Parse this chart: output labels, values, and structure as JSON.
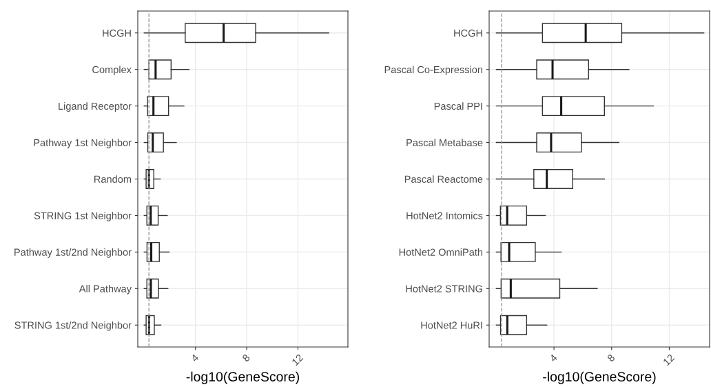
{
  "chart_data": [
    {
      "type": "box",
      "orientation": "horizontal",
      "xlabel": "-log10(GeneScore)",
      "grid": true,
      "categories": [
        "HCGH",
        "Complex",
        "Ligand Receptor",
        "Pathway 1st Neighbor",
        "Random",
        "STRING 1st Neighbor",
        "Pathway 1st/2nd Neighbor",
        "All Pathway",
        "STRING 1st/2nd Neighbor"
      ],
      "boxes": [
        {
          "low": 0,
          "q1": 3.2,
          "median": 6.2,
          "q3": 8.7,
          "high": 14.4
        },
        {
          "low": 0,
          "q1": 0.37,
          "median": 0.89,
          "q3": 2.1,
          "high": 3.5
        },
        {
          "low": 0,
          "q1": 0.26,
          "median": 0.72,
          "q3": 1.9,
          "high": 3.1
        },
        {
          "low": 0,
          "q1": 0.28,
          "median": 0.67,
          "q3": 1.5,
          "high": 2.5
        },
        {
          "low": 0,
          "q1": 0.15,
          "median": 0.37,
          "q3": 0.75,
          "high": 1.26
        },
        {
          "low": 0,
          "q1": 0.21,
          "median": 0.51,
          "q3": 1.09,
          "high": 1.8
        },
        {
          "low": 0,
          "q1": 0.22,
          "median": 0.55,
          "q3": 1.18,
          "high": 1.95
        },
        {
          "low": 0,
          "q1": 0.21,
          "median": 0.52,
          "q3": 1.11,
          "high": 1.85
        },
        {
          "low": 0,
          "q1": 0.15,
          "median": 0.38,
          "q3": 0.79,
          "high": 1.3
        }
      ],
      "xlim": [
        -0.5,
        15.9
      ],
      "xticks": [
        4,
        8,
        12
      ],
      "ref_lines": [
        {
          "axis": "x",
          "value": 0.37,
          "color": "#999999",
          "line_style": "dashed"
        }
      ]
    },
    {
      "type": "box",
      "orientation": "horizontal",
      "xlabel": "-log10(GeneScore)",
      "grid": true,
      "categories": [
        "HCGH",
        "Pascal Co-Expression",
        "Pascal PPI",
        "Pascal Metabase",
        "Pascal Reactome",
        "HotNet2 Intomics",
        "HotNet2 OmniPath",
        "HotNet2 STRING",
        "HotNet2 HuRI"
      ],
      "boxes": [
        {
          "low": 0,
          "q1": 3.2,
          "median": 6.2,
          "q3": 8.7,
          "high": 14.4
        },
        {
          "low": 0,
          "q1": 2.8,
          "median": 3.9,
          "q3": 6.4,
          "high": 9.2
        },
        {
          "low": 0,
          "q1": 3.2,
          "median": 4.5,
          "q3": 7.5,
          "high": 10.9
        },
        {
          "low": 0,
          "q1": 2.8,
          "median": 3.8,
          "q3": 5.9,
          "high": 8.5
        },
        {
          "low": 0,
          "q1": 2.6,
          "median": 3.5,
          "q3": 5.3,
          "high": 7.5
        },
        {
          "low": 0,
          "q1": 0.28,
          "median": 0.75,
          "q3": 2.1,
          "high": 3.4
        },
        {
          "low": 0,
          "q1": 0.32,
          "median": 0.89,
          "q3": 2.7,
          "high": 4.5
        },
        {
          "low": 0,
          "q1": 0.33,
          "median": 1.0,
          "q3": 4.4,
          "high": 7.0
        },
        {
          "low": 0,
          "q1": 0.29,
          "median": 0.76,
          "q3": 2.1,
          "high": 3.5
        }
      ],
      "xlim": [
        -0.5,
        14.8
      ],
      "xticks": [
        4,
        8,
        12
      ],
      "ref_lines": [
        {
          "axis": "x",
          "value": 0.37,
          "color": "#999999",
          "line_style": "dashed"
        }
      ]
    }
  ]
}
